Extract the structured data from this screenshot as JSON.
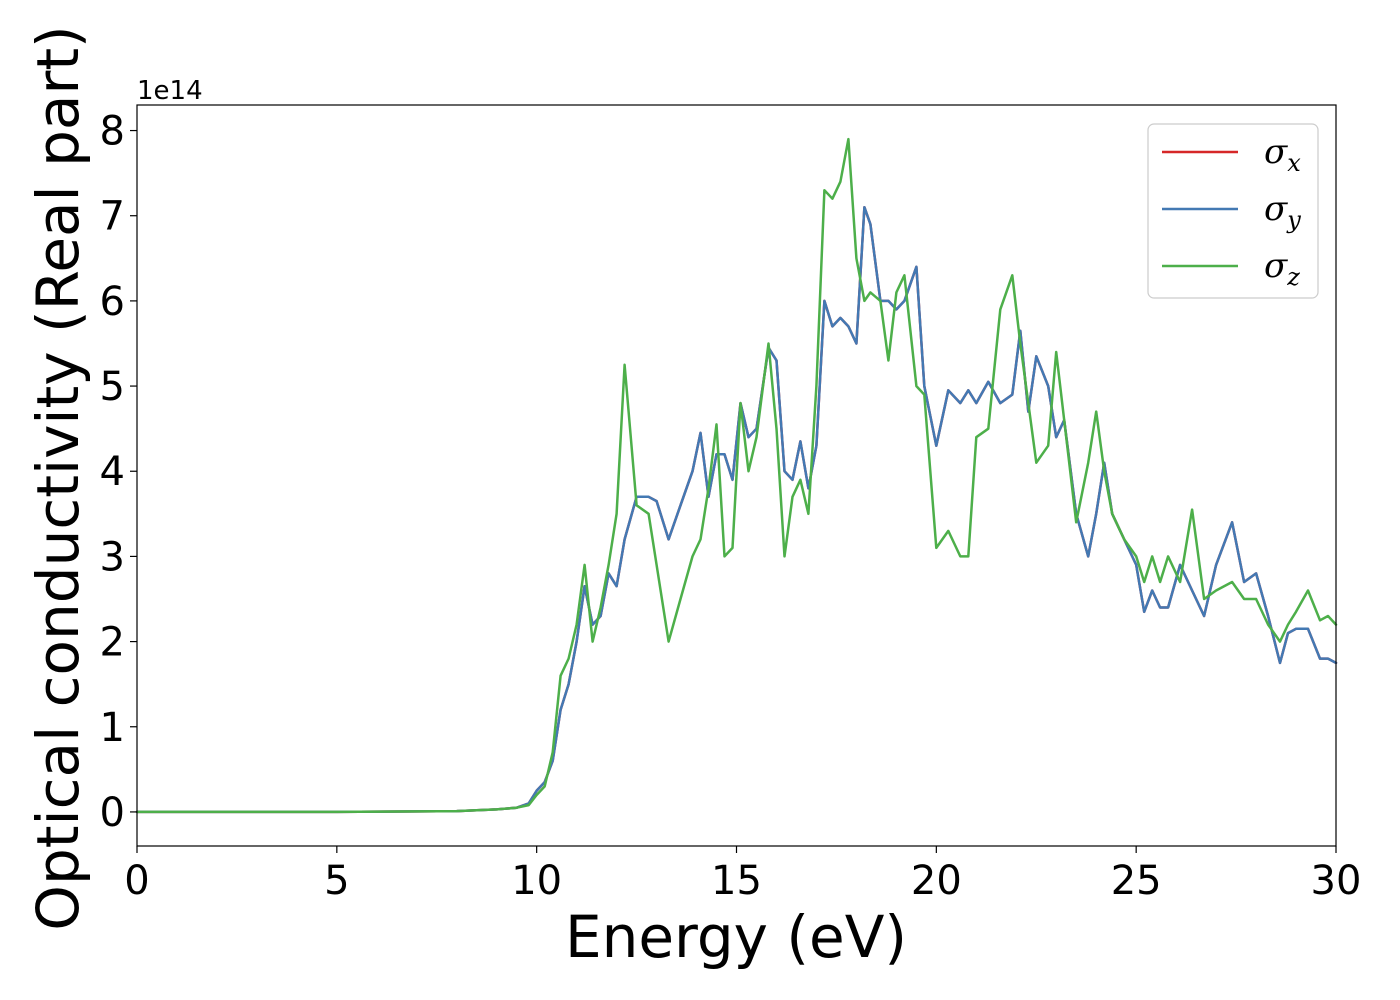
{
  "chart_data": {
    "type": "line",
    "xlabel": "Energy (eV)",
    "ylabel": "Optical conductivity (Real part)",
    "offset_text": "1e14",
    "y_scale_factor": 100000000000000.0,
    "xlim": [
      0,
      30
    ],
    "ylim": [
      -0.4,
      8.3
    ],
    "x_ticks": [
      0,
      5,
      10,
      15,
      20,
      25,
      30
    ],
    "y_ticks": [
      0,
      1,
      2,
      3,
      4,
      5,
      6,
      7,
      8
    ],
    "x_tick_labels": [
      "0",
      "5",
      "10",
      "15",
      "20",
      "25",
      "30"
    ],
    "y_tick_labels": [
      "0",
      "1",
      "2",
      "3",
      "4",
      "5",
      "6",
      "7",
      "8"
    ],
    "grid": false,
    "legend_position": "top-right",
    "series": [
      {
        "name": "σx",
        "legend_base": "σ",
        "legend_sub": "x",
        "color": "#d62728",
        "x": [
          0,
          5,
          8,
          9,
          9.5,
          9.8,
          10,
          10.2,
          10.4,
          10.6,
          10.8,
          11.0,
          11.2,
          11.4,
          11.6,
          11.8,
          12.0,
          12.2,
          12.5,
          12.8,
          13.0,
          13.3,
          13.6,
          13.9,
          14.1,
          14.3,
          14.5,
          14.7,
          14.9,
          15.1,
          15.3,
          15.5,
          15.8,
          16.0,
          16.2,
          16.4,
          16.6,
          16.8,
          17.0,
          17.2,
          17.4,
          17.6,
          17.8,
          18.0,
          18.2,
          18.35,
          18.6,
          18.8,
          19.0,
          19.2,
          19.5,
          19.7,
          20.0,
          20.3,
          20.6,
          20.8,
          21.0,
          21.3,
          21.6,
          21.9,
          22.1,
          22.3,
          22.5,
          22.8,
          23.0,
          23.2,
          23.5,
          23.8,
          24.0,
          24.2,
          24.4,
          24.7,
          25.0,
          25.2,
          25.4,
          25.6,
          25.8,
          26.1,
          26.4,
          26.7,
          27.0,
          27.4,
          27.7,
          28.0,
          28.3,
          28.6,
          28.8,
          29.0,
          29.3,
          29.6,
          29.8,
          30.0
        ],
        "y": [
          0,
          0,
          0.01,
          0.03,
          0.05,
          0.1,
          0.25,
          0.35,
          0.6,
          1.2,
          1.5,
          2.0,
          2.65,
          2.2,
          2.3,
          2.8,
          2.65,
          3.2,
          3.7,
          3.7,
          3.65,
          3.2,
          3.6,
          4.0,
          4.45,
          3.7,
          4.2,
          4.2,
          3.9,
          4.8,
          4.4,
          4.5,
          5.45,
          5.3,
          4.0,
          3.9,
          4.35,
          3.8,
          4.3,
          6.0,
          5.7,
          5.8,
          5.7,
          5.5,
          7.1,
          6.9,
          6.0,
          6.0,
          5.9,
          6.0,
          6.4,
          5.0,
          4.3,
          4.95,
          4.8,
          4.95,
          4.8,
          5.05,
          4.8,
          4.9,
          5.65,
          4.7,
          5.35,
          5.0,
          4.4,
          4.6,
          3.5,
          3.0,
          3.5,
          4.1,
          3.5,
          3.2,
          2.9,
          2.35,
          2.6,
          2.4,
          2.4,
          2.9,
          2.6,
          2.3,
          2.9,
          3.4,
          2.7,
          2.8,
          2.3,
          1.75,
          2.1,
          2.15,
          2.15,
          1.8,
          1.8,
          1.75
        ]
      },
      {
        "name": "σy",
        "legend_base": "σ",
        "legend_sub": "y",
        "color": "#4379b3",
        "x": [
          0,
          5,
          8,
          9,
          9.5,
          9.8,
          10,
          10.2,
          10.4,
          10.6,
          10.8,
          11.0,
          11.2,
          11.4,
          11.6,
          11.8,
          12.0,
          12.2,
          12.5,
          12.8,
          13.0,
          13.3,
          13.6,
          13.9,
          14.1,
          14.3,
          14.5,
          14.7,
          14.9,
          15.1,
          15.3,
          15.5,
          15.8,
          16.0,
          16.2,
          16.4,
          16.6,
          16.8,
          17.0,
          17.2,
          17.4,
          17.6,
          17.8,
          18.0,
          18.2,
          18.35,
          18.6,
          18.8,
          19.0,
          19.2,
          19.5,
          19.7,
          20.0,
          20.3,
          20.6,
          20.8,
          21.0,
          21.3,
          21.6,
          21.9,
          22.1,
          22.3,
          22.5,
          22.8,
          23.0,
          23.2,
          23.5,
          23.8,
          24.0,
          24.2,
          24.4,
          24.7,
          25.0,
          25.2,
          25.4,
          25.6,
          25.8,
          26.1,
          26.4,
          26.7,
          27.0,
          27.4,
          27.7,
          28.0,
          28.3,
          28.6,
          28.8,
          29.0,
          29.3,
          29.6,
          29.8,
          30.0
        ],
        "y": [
          0,
          0,
          0.01,
          0.03,
          0.05,
          0.1,
          0.25,
          0.35,
          0.6,
          1.2,
          1.5,
          2.0,
          2.65,
          2.2,
          2.3,
          2.8,
          2.65,
          3.2,
          3.7,
          3.7,
          3.65,
          3.2,
          3.6,
          4.0,
          4.45,
          3.7,
          4.2,
          4.2,
          3.9,
          4.8,
          4.4,
          4.5,
          5.45,
          5.3,
          4.0,
          3.9,
          4.35,
          3.8,
          4.3,
          6.0,
          5.7,
          5.8,
          5.7,
          5.5,
          7.1,
          6.9,
          6.0,
          6.0,
          5.9,
          6.0,
          6.4,
          5.0,
          4.3,
          4.95,
          4.8,
          4.95,
          4.8,
          5.05,
          4.8,
          4.9,
          5.65,
          4.7,
          5.35,
          5.0,
          4.4,
          4.6,
          3.5,
          3.0,
          3.5,
          4.1,
          3.5,
          3.2,
          2.9,
          2.35,
          2.6,
          2.4,
          2.4,
          2.9,
          2.6,
          2.3,
          2.9,
          3.4,
          2.7,
          2.8,
          2.3,
          1.75,
          2.1,
          2.15,
          2.15,
          1.8,
          1.8,
          1.75
        ]
      },
      {
        "name": "σz",
        "legend_base": "σ",
        "legend_sub": "z",
        "color": "#4daf4a",
        "x": [
          0,
          5,
          8,
          9,
          9.5,
          9.8,
          10,
          10.2,
          10.4,
          10.6,
          10.8,
          11.0,
          11.2,
          11.4,
          11.6,
          11.8,
          12.0,
          12.2,
          12.5,
          12.8,
          13.0,
          13.3,
          13.6,
          13.9,
          14.1,
          14.3,
          14.5,
          14.7,
          14.9,
          15.1,
          15.3,
          15.5,
          15.8,
          16.0,
          16.2,
          16.4,
          16.6,
          16.8,
          17.0,
          17.2,
          17.4,
          17.6,
          17.8,
          18.0,
          18.2,
          18.35,
          18.6,
          18.8,
          19.0,
          19.2,
          19.5,
          19.7,
          20.0,
          20.3,
          20.6,
          20.8,
          21.0,
          21.3,
          21.6,
          21.9,
          22.1,
          22.3,
          22.5,
          22.8,
          23.0,
          23.2,
          23.5,
          23.8,
          24.0,
          24.2,
          24.4,
          24.7,
          25.0,
          25.2,
          25.4,
          25.6,
          25.8,
          26.1,
          26.4,
          26.7,
          27.0,
          27.4,
          27.7,
          28.0,
          28.3,
          28.6,
          28.8,
          29.0,
          29.3,
          29.6,
          29.8,
          30.0
        ],
        "y": [
          0,
          0,
          0.01,
          0.03,
          0.05,
          0.08,
          0.2,
          0.3,
          0.7,
          1.6,
          1.8,
          2.2,
          2.9,
          2.0,
          2.4,
          2.9,
          3.5,
          5.25,
          3.6,
          3.5,
          2.9,
          2.0,
          2.5,
          3.0,
          3.2,
          3.8,
          4.55,
          3.0,
          3.1,
          4.8,
          4.0,
          4.4,
          5.5,
          4.5,
          3.0,
          3.7,
          3.9,
          3.5,
          5.0,
          7.3,
          7.2,
          7.4,
          7.9,
          6.5,
          6.0,
          6.1,
          6.0,
          5.3,
          6.1,
          6.3,
          5.0,
          4.9,
          3.1,
          3.3,
          3.0,
          3.0,
          4.4,
          4.5,
          5.9,
          6.3,
          5.5,
          4.8,
          4.1,
          4.3,
          5.4,
          4.6,
          3.4,
          4.1,
          4.7,
          4.0,
          3.5,
          3.2,
          3.0,
          2.7,
          3.0,
          2.7,
          3.0,
          2.7,
          3.55,
          2.5,
          2.6,
          2.7,
          2.5,
          2.5,
          2.2,
          2.0,
          2.2,
          2.35,
          2.6,
          2.25,
          2.3,
          2.2
        ]
      }
    ]
  }
}
